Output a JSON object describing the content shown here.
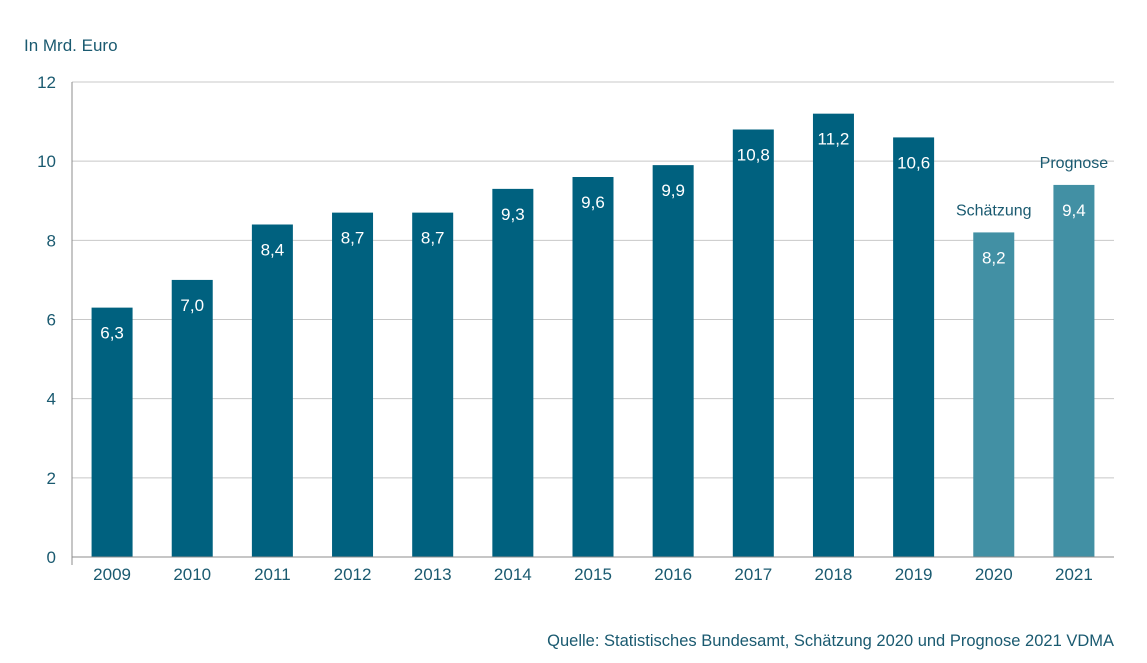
{
  "chart_data": {
    "type": "bar",
    "ylabel": "In Mrd. Euro",
    "ylim": [
      0,
      12
    ],
    "yticks": [
      0,
      2,
      4,
      6,
      8,
      10,
      12
    ],
    "grid": true,
    "categories": [
      "2009",
      "2010",
      "2011",
      "2012",
      "2013",
      "2014",
      "2015",
      "2016",
      "2017",
      "2018",
      "2019",
      "2020",
      "2021"
    ],
    "values": [
      6.3,
      7.0,
      8.4,
      8.7,
      8.7,
      9.3,
      9.6,
      9.9,
      10.8,
      11.2,
      10.6,
      8.2,
      9.4
    ],
    "value_labels": [
      "6,3",
      "7,0",
      "8,4",
      "8,7",
      "8,7",
      "9,3",
      "9,6",
      "9,9",
      "10,8",
      "11,2",
      "10,6",
      "8,2",
      "9,4"
    ],
    "bar_colors": [
      "#00617f",
      "#00617f",
      "#00617f",
      "#00617f",
      "#00617f",
      "#00617f",
      "#00617f",
      "#00617f",
      "#00617f",
      "#00617f",
      "#00617f",
      "#4290a4",
      "#4290a4"
    ],
    "annotations": [
      {
        "category": "2020",
        "text": "Schätzung"
      },
      {
        "category": "2021",
        "text": "Prognose"
      }
    ],
    "source": "Quelle: Statistisches Bundesamt, Schätzung 2020 und Prognose 2021 VDMA"
  }
}
